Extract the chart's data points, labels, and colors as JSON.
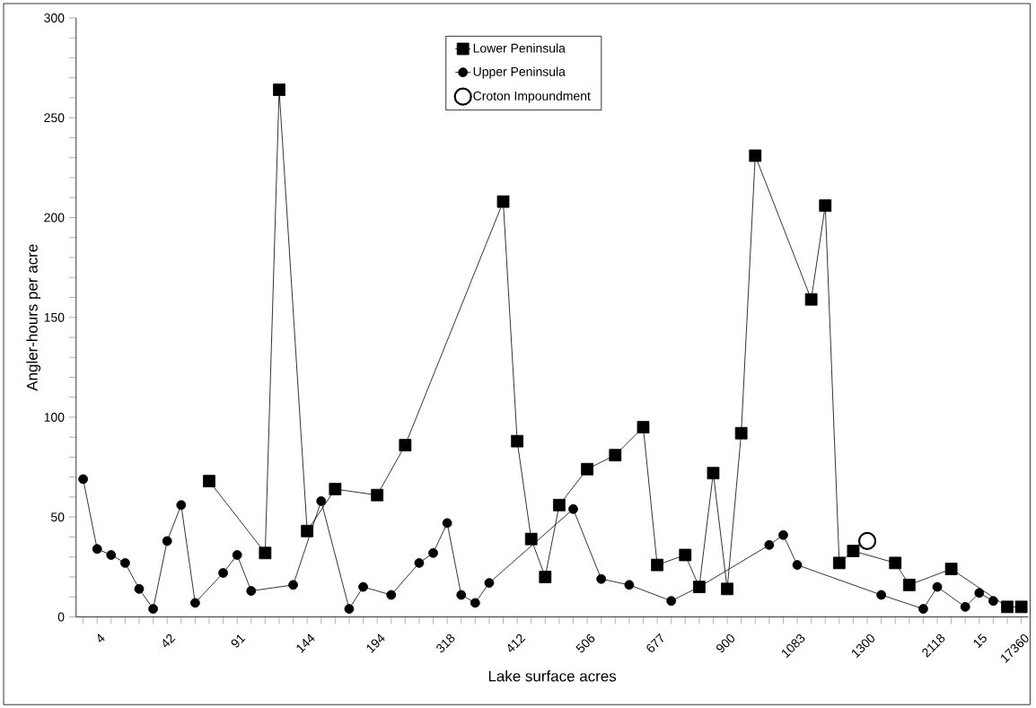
{
  "chart_data": {
    "type": "line",
    "xlabel": "Lake surface acres",
    "ylabel": "Angler-hours per acre",
    "categories": [
      null,
      "4",
      null,
      null,
      null,
      null,
      "42",
      null,
      null,
      null,
      null,
      "91",
      null,
      null,
      null,
      null,
      "144",
      null,
      null,
      null,
      null,
      "194",
      null,
      null,
      null,
      null,
      "318",
      null,
      null,
      null,
      null,
      "412",
      null,
      null,
      null,
      null,
      "506",
      null,
      null,
      null,
      null,
      "677",
      null,
      null,
      null,
      null,
      "900",
      null,
      null,
      null,
      null,
      "1083",
      null,
      null,
      null,
      null,
      "1300",
      null,
      null,
      null,
      null,
      "2118",
      null,
      null,
      "15",
      null,
      null,
      "17360"
    ],
    "ylim": [
      0,
      300
    ],
    "yticks": [
      0,
      50,
      100,
      150,
      200,
      250,
      300
    ],
    "legend": "top",
    "grid": false,
    "series": [
      {
        "name": "Lower Peninsula",
        "color": "#000000",
        "marker": "square",
        "values": [
          null,
          null,
          null,
          null,
          null,
          null,
          null,
          null,
          null,
          68,
          null,
          null,
          null,
          32,
          264,
          null,
          43,
          null,
          64,
          null,
          null,
          61,
          null,
          86,
          null,
          null,
          null,
          null,
          null,
          null,
          208,
          88,
          39,
          20,
          56,
          null,
          74,
          null,
          81,
          null,
          95,
          26,
          null,
          31,
          15,
          72,
          14,
          92,
          231,
          null,
          null,
          null,
          159,
          206,
          27,
          33,
          null,
          null,
          27,
          16,
          null,
          null,
          24,
          null,
          null,
          null,
          5,
          5
        ]
      },
      {
        "name": "Upper Peninsula",
        "color": "#000000",
        "marker": "circle",
        "values": [
          69,
          34,
          31,
          27,
          14,
          4,
          38,
          56,
          7,
          null,
          22,
          31,
          13,
          null,
          null,
          16,
          null,
          58,
          null,
          4,
          15,
          null,
          11,
          null,
          27,
          32,
          47,
          11,
          7,
          17,
          null,
          null,
          null,
          null,
          null,
          54,
          null,
          19,
          null,
          16,
          null,
          null,
          8,
          null,
          15,
          null,
          null,
          null,
          null,
          36,
          41,
          26,
          null,
          null,
          null,
          null,
          null,
          11,
          null,
          null,
          4,
          15,
          null,
          5,
          12,
          8,
          null,
          null
        ]
      },
      {
        "name": "Croton Impoundment",
        "type": "scatter",
        "color": "#000000",
        "marker": "circle",
        "values": [
          null,
          null,
          null,
          null,
          null,
          null,
          null,
          null,
          null,
          null,
          null,
          null,
          null,
          null,
          null,
          null,
          null,
          null,
          null,
          null,
          null,
          null,
          null,
          null,
          null,
          null,
          null,
          null,
          null,
          null,
          null,
          null,
          null,
          null,
          null,
          null,
          null,
          null,
          null,
          null,
          null,
          null,
          null,
          null,
          null,
          null,
          null,
          null,
          null,
          null,
          null,
          null,
          null,
          null,
          null,
          null,
          38,
          null,
          null,
          null,
          null,
          null,
          null,
          null,
          null,
          null,
          null,
          null
        ]
      }
    ]
  }
}
